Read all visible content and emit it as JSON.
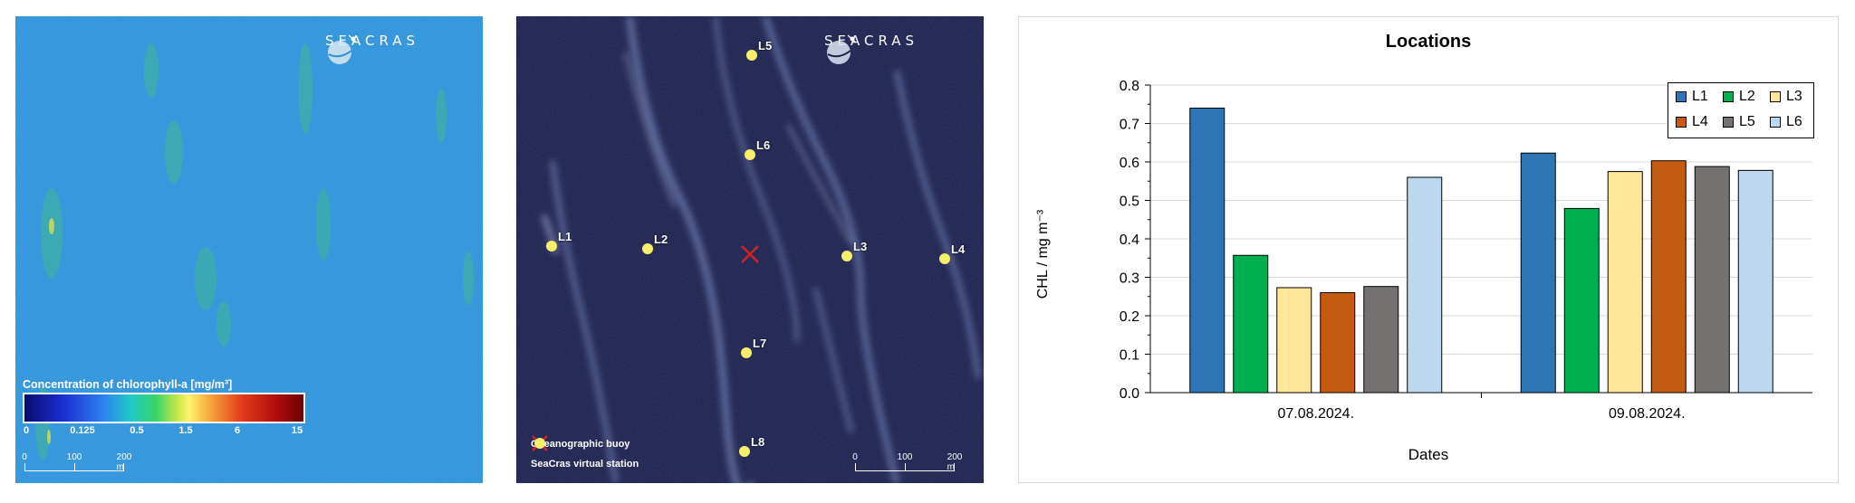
{
  "chlorophyll_map": {
    "logo_text": "SEACRAS",
    "legend_title": "Concentration of chlorophyll-a [mg/m³]",
    "legend_ticks": [
      "0",
      "0.125",
      "0.5",
      "1.5",
      "6",
      "15"
    ],
    "scale_labels": [
      "0",
      "100",
      "200 m"
    ]
  },
  "satellite_map": {
    "logo_text": "SEACRAS",
    "stations": [
      {
        "name": "L1"
      },
      {
        "name": "L2"
      },
      {
        "name": "L3"
      },
      {
        "name": "L4"
      },
      {
        "name": "L5"
      },
      {
        "name": "L6"
      },
      {
        "name": "L7"
      },
      {
        "name": "L8"
      }
    ],
    "legend": {
      "buoy_label": "Oceanographic buoy",
      "station_label": "SeaCras virtual station"
    },
    "scale_labels": [
      "0",
      "100",
      "200 m"
    ],
    "colors": {
      "station": "#f7ef6a",
      "buoy": "#d2232a"
    }
  },
  "chart_data": {
    "type": "bar",
    "title": "Locations",
    "xlabel": "Dates",
    "ylabel": "CHL / mg m⁻³",
    "categories": [
      "07.08.2024.",
      "09.08.2024."
    ],
    "ylim": [
      0,
      0.8
    ],
    "yticks": [
      "0.0",
      "0.1",
      "0.2",
      "0.3",
      "0.4",
      "0.5",
      "0.6",
      "0.7",
      "0.8"
    ],
    "grid": true,
    "legend_position": "top-right",
    "series": [
      {
        "name": "L1",
        "color": "#2e75b6",
        "values": [
          0.74,
          0.623
        ]
      },
      {
        "name": "L2",
        "color": "#00b050",
        "values": [
          0.357,
          0.479
        ]
      },
      {
        "name": "L3",
        "color": "#ffe699",
        "values": [
          0.273,
          0.575
        ]
      },
      {
        "name": "L4",
        "color": "#c55a11",
        "values": [
          0.26,
          0.603
        ]
      },
      {
        "name": "L5",
        "color": "#767171",
        "values": [
          0.276,
          0.588
        ]
      },
      {
        "name": "L6",
        "color": "#bdd7ee",
        "values": [
          0.56,
          0.578
        ]
      }
    ]
  }
}
